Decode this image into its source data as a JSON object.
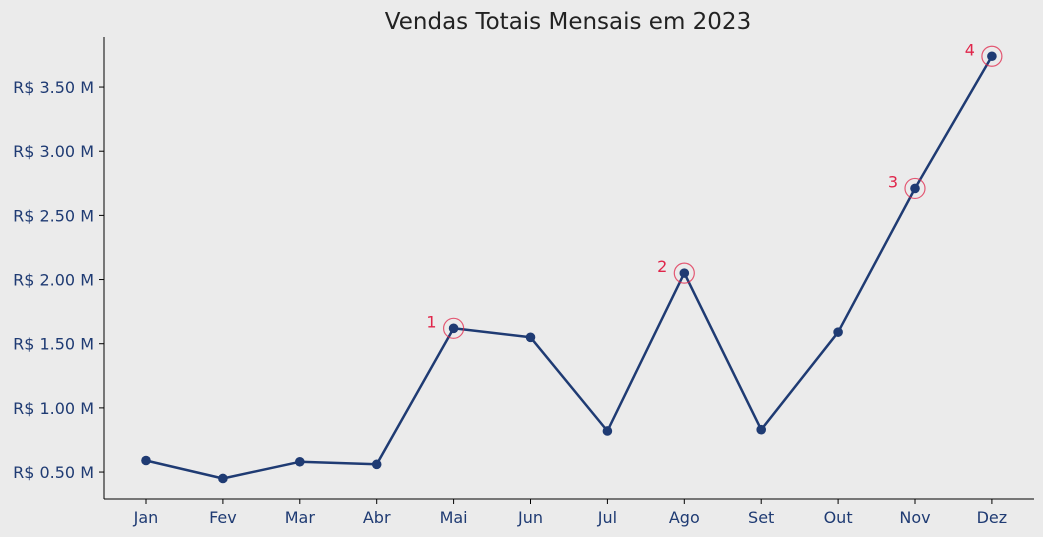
{
  "chart_data": {
    "type": "line",
    "title": "Vendas Totais Mensais em 2023",
    "xlabel": "",
    "ylabel": "",
    "categories": [
      "Jan",
      "Fev",
      "Mar",
      "Abr",
      "Mai",
      "Jun",
      "Jul",
      "Ago",
      "Set",
      "Out",
      "Nov",
      "Dez"
    ],
    "series": [
      {
        "values": [
          0.59,
          0.45,
          0.58,
          0.56,
          1.62,
          1.55,
          0.82,
          2.05,
          0.83,
          1.59,
          2.71,
          3.74
        ]
      }
    ],
    "ylim": [
      0.29,
      3.89
    ],
    "yticks": [
      0.5,
      1.0,
      1.5,
      2.0,
      2.5,
      3.0,
      3.5
    ],
    "ytick_labels": [
      "R$ 0.50 M",
      "R$ 1.00 M",
      "R$ 1.50 M",
      "R$ 2.00 M",
      "R$ 2.50 M",
      "R$ 3.00 M",
      "R$ 3.50 M"
    ],
    "annotations": [
      {
        "label": "1",
        "category": "Mai"
      },
      {
        "label": "2",
        "category": "Ago"
      },
      {
        "label": "3",
        "category": "Nov"
      },
      {
        "label": "4",
        "category": "Dez"
      }
    ],
    "grid": false,
    "colors": {
      "line": "#1f3b73",
      "annotation": "#e0254a",
      "background": "#ebebeb"
    }
  }
}
